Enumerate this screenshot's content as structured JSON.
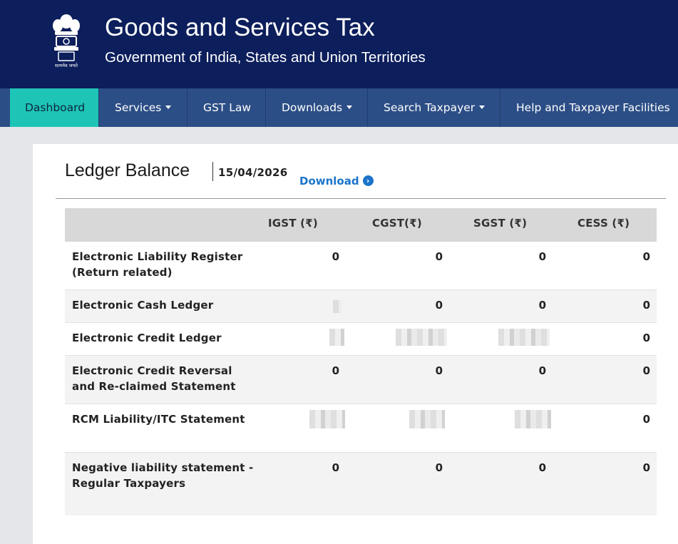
{
  "header": {
    "title": "Goods and Services Tax",
    "subtitle": "Government of India, States and Union Territories",
    "emblem_caption": "सत्यमेव जयते"
  },
  "nav": [
    {
      "label": "Dashboard",
      "active": true,
      "dropdown": false
    },
    {
      "label": "Services",
      "active": false,
      "dropdown": true
    },
    {
      "label": "GST Law",
      "active": false,
      "dropdown": false
    },
    {
      "label": "Downloads",
      "active": false,
      "dropdown": true
    },
    {
      "label": "Search Taxpayer",
      "active": false,
      "dropdown": true
    },
    {
      "label": "Help and Taxpayer Facilities",
      "active": false,
      "dropdown": false
    }
  ],
  "ledger": {
    "title": "Ledger Balance",
    "date": "15/04/2026",
    "download_label": "Download",
    "download_icon": "chevron-right-circle-icon"
  },
  "table": {
    "columns": [
      "",
      "IGST (₹)",
      "CGST(₹)",
      "SGST (₹)",
      "CESS (₹)"
    ],
    "rows": [
      {
        "label": "Electronic Liability Register (Return related)",
        "igst": "0",
        "cgst": "0",
        "sgst": "0",
        "cess": "0"
      },
      {
        "label": "Electronic Cash Ledger",
        "igst": "[redacted]",
        "cgst": "0",
        "sgst": "0",
        "cess": "0"
      },
      {
        "label": "Electronic Credit Ledger",
        "igst": "[redacted]",
        "cgst": "[redacted]",
        "sgst": "[redacted]",
        "cess": "0"
      },
      {
        "label": "Electronic Credit Reversal and Re-claimed Statement",
        "igst": "0",
        "cgst": "0",
        "sgst": "0",
        "cess": "0"
      },
      {
        "label": "RCM Liability/ITC Statement",
        "igst": "[redacted]",
        "cgst": "[redacted]",
        "sgst": "[redacted]",
        "cess": "0"
      },
      {
        "label": "Negative liability statement - Regular Taxpayers",
        "igst": "0",
        "cgst": "0",
        "sgst": "0",
        "cess": "0"
      }
    ]
  },
  "colors": {
    "header_bg": "#0c1e5b",
    "nav_bg": "#2c4e86",
    "nav_active": "#1ec5b6",
    "link": "#1b74c9"
  }
}
